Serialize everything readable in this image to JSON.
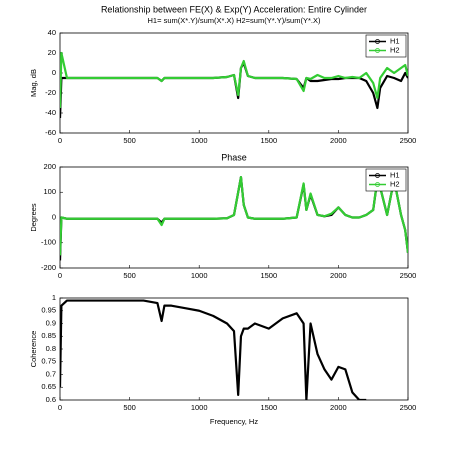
{
  "chart_data": [
    {
      "type": "line",
      "title": "Relationship between FE(X) & Exp(Y) Acceleration: Entire Cylinder",
      "subtitle": "H1= sum(X*.Y)/sum(X*.X) H2=sum(Y*.Y)/sum(Y*.X)",
      "ylabel": "Mag, dB",
      "x": [
        0,
        10,
        50,
        100,
        200,
        300,
        400,
        500,
        600,
        700,
        730,
        750,
        800,
        900,
        1000,
        1100,
        1200,
        1250,
        1280,
        1300,
        1320,
        1350,
        1400,
        1500,
        1600,
        1700,
        1750,
        1770,
        1800,
        1850,
        1900,
        1950,
        2000,
        2050,
        2100,
        2150,
        2200,
        2250,
        2280,
        2300,
        2350,
        2400,
        2450,
        2480,
        2500
      ],
      "series": [
        {
          "name": "H1",
          "color": "#000000",
          "values": [
            -45,
            -5,
            -5,
            -5,
            -5,
            -5,
            -5,
            -5,
            -5,
            -5,
            -8,
            -5,
            -5,
            -5,
            -5,
            -5,
            -4,
            -2,
            -25,
            5,
            10,
            -3,
            -5,
            -5,
            -5,
            -6,
            -15,
            -5,
            -8,
            -8,
            -7,
            -6,
            -6,
            -5,
            -5,
            -5,
            -8,
            -20,
            -35,
            -15,
            -3,
            -5,
            -8,
            0,
            -5
          ]
        },
        {
          "name": "H2",
          "color": "#33cc33",
          "values": [
            -35,
            20,
            -5,
            -5,
            -5,
            -5,
            -5,
            -5,
            -5,
            -5,
            -8,
            -5,
            -5,
            -5,
            -5,
            -5,
            -4,
            -2,
            -22,
            5,
            12,
            -3,
            -5,
            -5,
            -5,
            -6,
            -18,
            -5,
            -6,
            -2,
            -5,
            -5,
            -3,
            -5,
            -4,
            -5,
            0,
            -10,
            -25,
            -5,
            5,
            0,
            5,
            8,
            -3
          ]
        }
      ],
      "xlim": [
        0,
        2500
      ],
      "xticks": [
        0,
        500,
        1000,
        1500,
        2000,
        2500
      ],
      "ylim": [
        -60,
        40
      ],
      "yticks": [
        -60,
        -40,
        -20,
        0,
        20,
        40
      ],
      "legend": "upper right"
    },
    {
      "type": "line",
      "title": "Phase",
      "ylabel": "Degrees",
      "x": [
        0,
        10,
        50,
        100,
        200,
        300,
        400,
        500,
        600,
        700,
        730,
        750,
        800,
        900,
        1000,
        1100,
        1200,
        1250,
        1280,
        1300,
        1320,
        1350,
        1400,
        1500,
        1600,
        1700,
        1750,
        1770,
        1800,
        1850,
        1900,
        1950,
        2000,
        2050,
        2100,
        2150,
        2200,
        2250,
        2280,
        2300,
        2350,
        2400,
        2450,
        2480,
        2500
      ],
      "series": [
        {
          "name": "H1",
          "color": "#000000",
          "values": [
            -170,
            0,
            -5,
            -5,
            -5,
            -5,
            -5,
            -5,
            -5,
            -5,
            -20,
            -5,
            -5,
            -5,
            -5,
            -5,
            -3,
            10,
            100,
            160,
            50,
            0,
            -5,
            -5,
            -5,
            0,
            130,
            30,
            90,
            10,
            5,
            10,
            40,
            10,
            0,
            0,
            10,
            30,
            150,
            120,
            10,
            150,
            10,
            -50,
            -140
          ]
        },
        {
          "name": "H2",
          "color": "#33cc33",
          "values": [
            -150,
            0,
            -5,
            -5,
            -5,
            -5,
            -5,
            -5,
            -5,
            -5,
            -30,
            -5,
            -5,
            -5,
            -5,
            -5,
            -3,
            10,
            100,
            160,
            50,
            0,
            -5,
            -5,
            -5,
            0,
            135,
            30,
            95,
            10,
            5,
            15,
            40,
            10,
            0,
            0,
            10,
            30,
            155,
            120,
            10,
            150,
            10,
            -50,
            -140
          ]
        }
      ],
      "xlim": [
        0,
        2500
      ],
      "xticks": [
        0,
        500,
        1000,
        1500,
        2000,
        2500
      ],
      "ylim": [
        -200,
        200
      ],
      "yticks": [
        -200,
        -100,
        0,
        100,
        200
      ],
      "legend": "upper right"
    },
    {
      "type": "line",
      "ylabel": "Coherence",
      "xlabel": "Frequency, Hz",
      "x": [
        0,
        10,
        50,
        100,
        200,
        300,
        400,
        500,
        600,
        700,
        730,
        750,
        800,
        900,
        1000,
        1100,
        1200,
        1250,
        1280,
        1300,
        1320,
        1350,
        1400,
        1500,
        1600,
        1700,
        1750,
        1770,
        1800,
        1850,
        1900,
        1950,
        2000,
        2050,
        2100,
        2150,
        2200,
        2250,
        2280,
        2300,
        2350,
        2400,
        2450,
        2480,
        2500
      ],
      "series": [
        {
          "color": "#000000",
          "values": [
            0.65,
            0.97,
            0.99,
            0.99,
            0.99,
            0.99,
            0.99,
            0.99,
            0.99,
            0.98,
            0.91,
            0.97,
            0.97,
            0.96,
            0.95,
            0.93,
            0.9,
            0.87,
            0.62,
            0.85,
            0.88,
            0.88,
            0.9,
            0.88,
            0.92,
            0.94,
            0.9,
            0.6,
            0.9,
            0.78,
            0.72,
            0.68,
            0.73,
            0.72,
            0.63,
            0.6,
            0.6,
            null,
            null,
            null,
            null,
            null,
            null,
            null,
            null
          ]
        }
      ],
      "xlim": [
        0,
        2500
      ],
      "xticks": [
        0,
        500,
        1000,
        1500,
        2000,
        2500
      ],
      "ylim": [
        0.6,
        1
      ],
      "yticks": [
        0.6,
        0.65,
        0.7,
        0.75,
        0.8,
        0.85,
        0.9,
        0.95,
        1
      ]
    }
  ]
}
